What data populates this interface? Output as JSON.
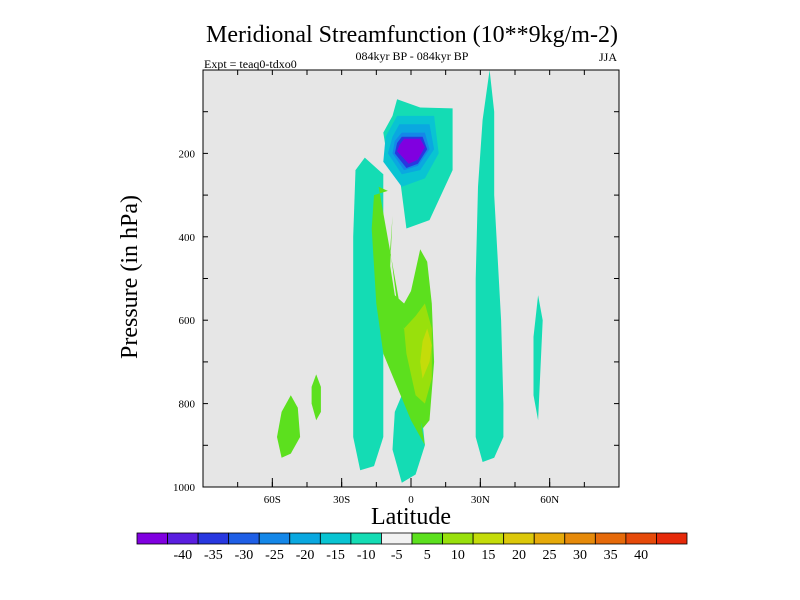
{
  "chart_data": {
    "type": "heatmap",
    "title": "Meridional Streamfunction (10**9kg/m-2)",
    "subtitle": "084kyr BP - 084kyr BP",
    "left_label": "Expt = teaq0-tdxo0",
    "right_label": "JJA",
    "xlabel": "Latitude",
    "ylabel": "Pressure (in hPa)",
    "xlim": [
      -90,
      90
    ],
    "ylim": [
      0,
      1000
    ],
    "y_inverted": true,
    "x_ticks": [
      {
        "value": -60,
        "label": "60S"
      },
      {
        "value": -30,
        "label": "30S"
      },
      {
        "value": 0,
        "label": "0"
      },
      {
        "value": 30,
        "label": "30N"
      },
      {
        "value": 60,
        "label": "60N"
      }
    ],
    "y_ticks": [
      {
        "value": 200,
        "label": "200"
      },
      {
        "value": 400,
        "label": "400"
      },
      {
        "value": 600,
        "label": "600"
      },
      {
        "value": 800,
        "label": "800"
      },
      {
        "value": 1000,
        "label": "1000"
      }
    ],
    "background_color": "#e6e6e6",
    "colorbar": {
      "colors": [
        "#8000e0",
        "#5a1ee0",
        "#2838e0",
        "#1f5fe6",
        "#1487e8",
        "#0aa8e0",
        "#09c4d2",
        "#14dcb4",
        "#f2f2f2",
        "#5ce01e",
        "#99e00c",
        "#c4dc0a",
        "#dcc80a",
        "#e6aa0a",
        "#e68a0a",
        "#e66a0a",
        "#e64a0a",
        "#e62a0a"
      ],
      "labels": [
        "-40",
        "-35",
        "-30",
        "-25",
        "-20",
        "-15",
        "-10",
        "-5",
        "5",
        "10",
        "15",
        "20",
        "25",
        "30",
        "35",
        "40"
      ]
    },
    "regions": [
      {
        "level": -5,
        "color": "#14dcb4",
        "points": [
          [
            -6,
            70
          ],
          [
            4,
            90
          ],
          [
            18,
            92
          ],
          [
            18,
            240
          ],
          [
            8,
            360
          ],
          [
            -2,
            380
          ],
          [
            -5,
            250
          ],
          [
            -10,
            220
          ],
          [
            -12,
            150
          ],
          [
            -8,
            110
          ]
        ]
      },
      {
        "level": -5,
        "color": "#14dcb4",
        "points": [
          [
            -20,
            210
          ],
          [
            -12,
            250
          ],
          [
            -12,
            880
          ],
          [
            -16,
            950
          ],
          [
            -22,
            960
          ],
          [
            -25,
            880
          ],
          [
            -25,
            400
          ],
          [
            -24,
            240
          ]
        ]
      },
      {
        "level": -5,
        "color": "#14dcb4",
        "points": [
          [
            -4,
            780
          ],
          [
            4,
            790
          ],
          [
            6,
            900
          ],
          [
            2,
            970
          ],
          [
            -4,
            990
          ],
          [
            -8,
            910
          ],
          [
            -7,
            820
          ]
        ]
      },
      {
        "level": -5,
        "color": "#14dcb4",
        "points": [
          [
            34,
            0
          ],
          [
            36,
            100
          ],
          [
            36,
            300
          ],
          [
            39,
            600
          ],
          [
            40,
            800
          ],
          [
            40,
            880
          ],
          [
            36,
            930
          ],
          [
            31,
            940
          ],
          [
            28,
            880
          ],
          [
            28,
            500
          ],
          [
            29,
            280
          ],
          [
            31,
            120
          ]
        ]
      },
      {
        "level": -10,
        "color": "#09c4d2",
        "points": [
          [
            -6,
            110
          ],
          [
            10,
            110
          ],
          [
            12,
            200
          ],
          [
            6,
            260
          ],
          [
            -4,
            280
          ],
          [
            -12,
            220
          ],
          [
            -11,
            160
          ]
        ]
      },
      {
        "level": -15,
        "color": "#0aa8e0",
        "points": [
          [
            -5,
            130
          ],
          [
            8,
            130
          ],
          [
            10,
            190
          ],
          [
            4,
            240
          ],
          [
            -4,
            250
          ],
          [
            -10,
            200
          ],
          [
            -8,
            160
          ]
        ]
      },
      {
        "level": -20,
        "color": "#1487e8",
        "points": [
          [
            -4,
            150
          ],
          [
            6,
            150
          ],
          [
            8,
            190
          ],
          [
            3,
            230
          ],
          [
            -3,
            240
          ],
          [
            -8,
            200
          ],
          [
            -7,
            170
          ]
        ]
      },
      {
        "level": -30,
        "color": "#2838e0",
        "points": [
          [
            -4,
            160
          ],
          [
            5,
            160
          ],
          [
            7,
            190
          ],
          [
            3,
            225
          ],
          [
            -2,
            235
          ],
          [
            -7,
            200
          ],
          [
            -6,
            175
          ]
        ]
      },
      {
        "level": -40,
        "color": "#8000e0",
        "points": [
          [
            -3,
            165
          ],
          [
            4,
            165
          ],
          [
            6,
            185
          ],
          [
            3,
            215
          ],
          [
            -1,
            225
          ],
          [
            -6,
            195
          ],
          [
            -5,
            180
          ]
        ]
      },
      {
        "level": 10,
        "color": "#5ce01e",
        "points": [
          [
            -14,
            280
          ],
          [
            -10,
            290
          ],
          [
            -8,
            350
          ],
          [
            -9,
            430
          ],
          [
            -6,
            560
          ],
          [
            -3,
            620
          ],
          [
            -6,
            640
          ],
          [
            -9,
            680
          ],
          [
            -4,
            760
          ],
          [
            2,
            800
          ],
          [
            5,
            860
          ],
          [
            8,
            840
          ],
          [
            10,
            700
          ],
          [
            9,
            560
          ],
          [
            7,
            460
          ],
          [
            4,
            430
          ],
          [
            0,
            530
          ],
          [
            -3,
            560
          ],
          [
            -7,
            540
          ],
          [
            -9,
            470
          ],
          [
            -8,
            350
          ],
          [
            -10,
            290
          ],
          [
            -16,
            300
          ],
          [
            -17,
            380
          ],
          [
            -15,
            560
          ],
          [
            -12,
            680
          ],
          [
            -6,
            760
          ],
          [
            0,
            840
          ],
          [
            6,
            900
          ]
        ]
      },
      {
        "level": 15,
        "color": "#99e00c",
        "points": [
          [
            6,
            560
          ],
          [
            9,
            620
          ],
          [
            9,
            740
          ],
          [
            6,
            800
          ],
          [
            2,
            780
          ],
          [
            -2,
            680
          ],
          [
            -3,
            620
          ],
          [
            2,
            590
          ]
        ]
      },
      {
        "level": 20,
        "color": "#c4dc0a",
        "points": [
          [
            7,
            620
          ],
          [
            9,
            660
          ],
          [
            8,
            700
          ],
          [
            5,
            740
          ],
          [
            4,
            700
          ],
          [
            5,
            650
          ]
        ]
      },
      {
        "level": 10,
        "color": "#5ce01e",
        "points": [
          [
            -52,
            780
          ],
          [
            -49,
            810
          ],
          [
            -48,
            880
          ],
          [
            -52,
            920
          ],
          [
            -56,
            930
          ],
          [
            -58,
            880
          ],
          [
            -56,
            820
          ]
        ]
      },
      {
        "level": 10,
        "color": "#5ce01e",
        "points": [
          [
            -41,
            730
          ],
          [
            -39,
            760
          ],
          [
            -39,
            820
          ],
          [
            -41,
            840
          ],
          [
            -43,
            800
          ],
          [
            -43,
            760
          ]
        ]
      },
      {
        "level": -5,
        "color": "#14dcb4",
        "points": [
          [
            55,
            540
          ],
          [
            57,
            600
          ],
          [
            56,
            720
          ],
          [
            55,
            840
          ],
          [
            53,
            780
          ],
          [
            53,
            640
          ]
        ]
      }
    ]
  }
}
